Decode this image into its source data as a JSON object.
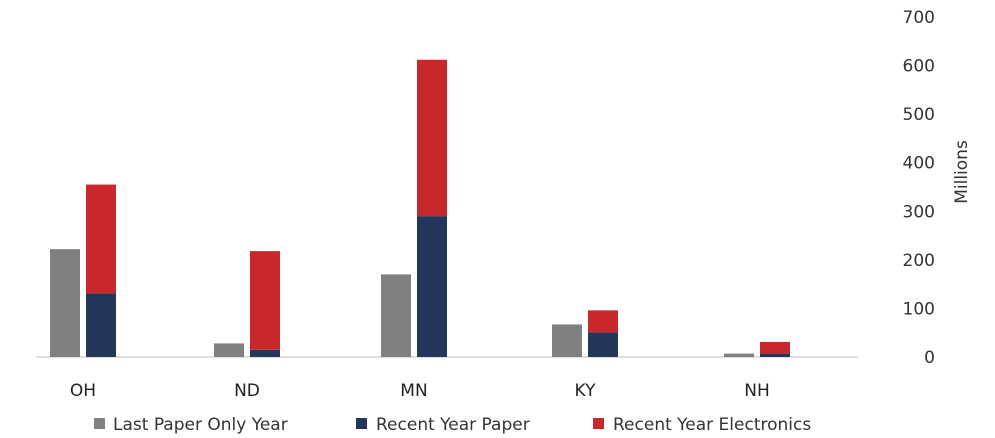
{
  "chart_data": {
    "type": "bar",
    "stacked_series": [
      "Recent Year Paper",
      "Recent Year Electronics"
    ],
    "categories": [
      "OH",
      "ND",
      "MN",
      "KY",
      "NH"
    ],
    "series": [
      {
        "name": "Last Paper Only Year",
        "values": [
          222,
          28,
          170,
          67,
          7
        ],
        "color": "#808080"
      },
      {
        "name": "Recent Year Paper",
        "values": [
          131,
          15,
          290,
          51,
          7
        ],
        "color": "#243659"
      },
      {
        "name": "Recent Year Electronics",
        "values": [
          224,
          203,
          322,
          45,
          24
        ],
        "color": "#c8282c"
      }
    ],
    "ylabel": "Millions",
    "ylim": [
      0,
      700
    ],
    "yticks": [
      0,
      100,
      200,
      300,
      400,
      500,
      600,
      700
    ],
    "y_axis_side": "right",
    "grid": false,
    "legend_position": "bottom"
  }
}
